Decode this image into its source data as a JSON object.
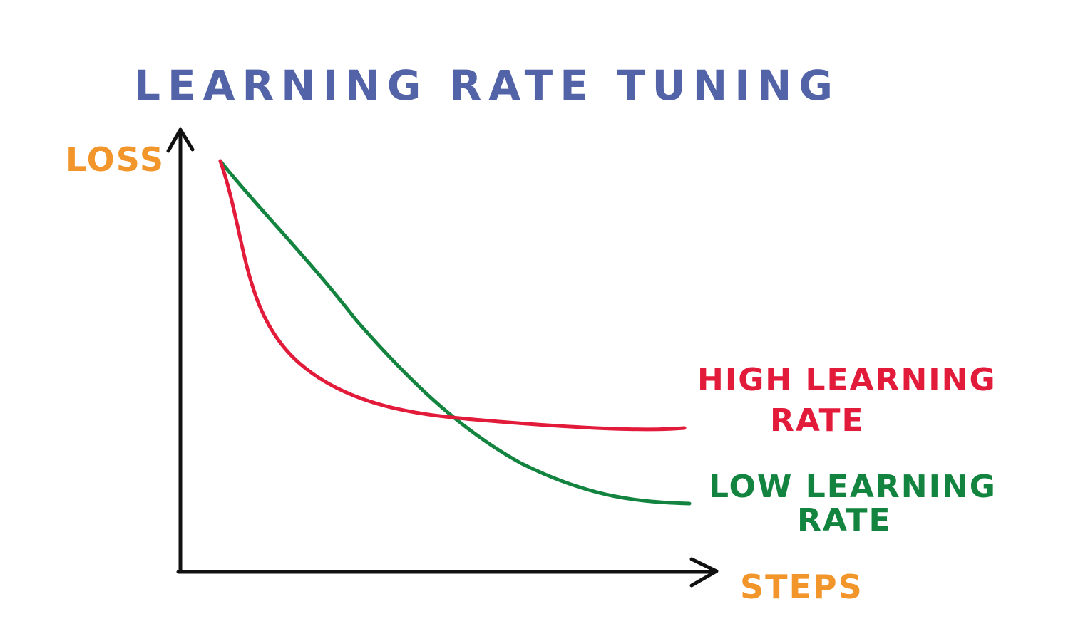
{
  "title": "LEARNING RATE TUNING",
  "y_axis_label": "LOSS",
  "x_axis_label": "STEPS",
  "series": [
    {
      "id": "high",
      "label_line1": "HIGH LEARNING",
      "label_line2": "RATE",
      "color": "#e31b3b"
    },
    {
      "id": "low",
      "label_line1": "LOW LEARNING",
      "label_line2": "RATE",
      "color": "#13843f"
    }
  ],
  "colors": {
    "title": "#5363a8",
    "axis_labels": "#f2952b",
    "axes": "#111111"
  }
}
